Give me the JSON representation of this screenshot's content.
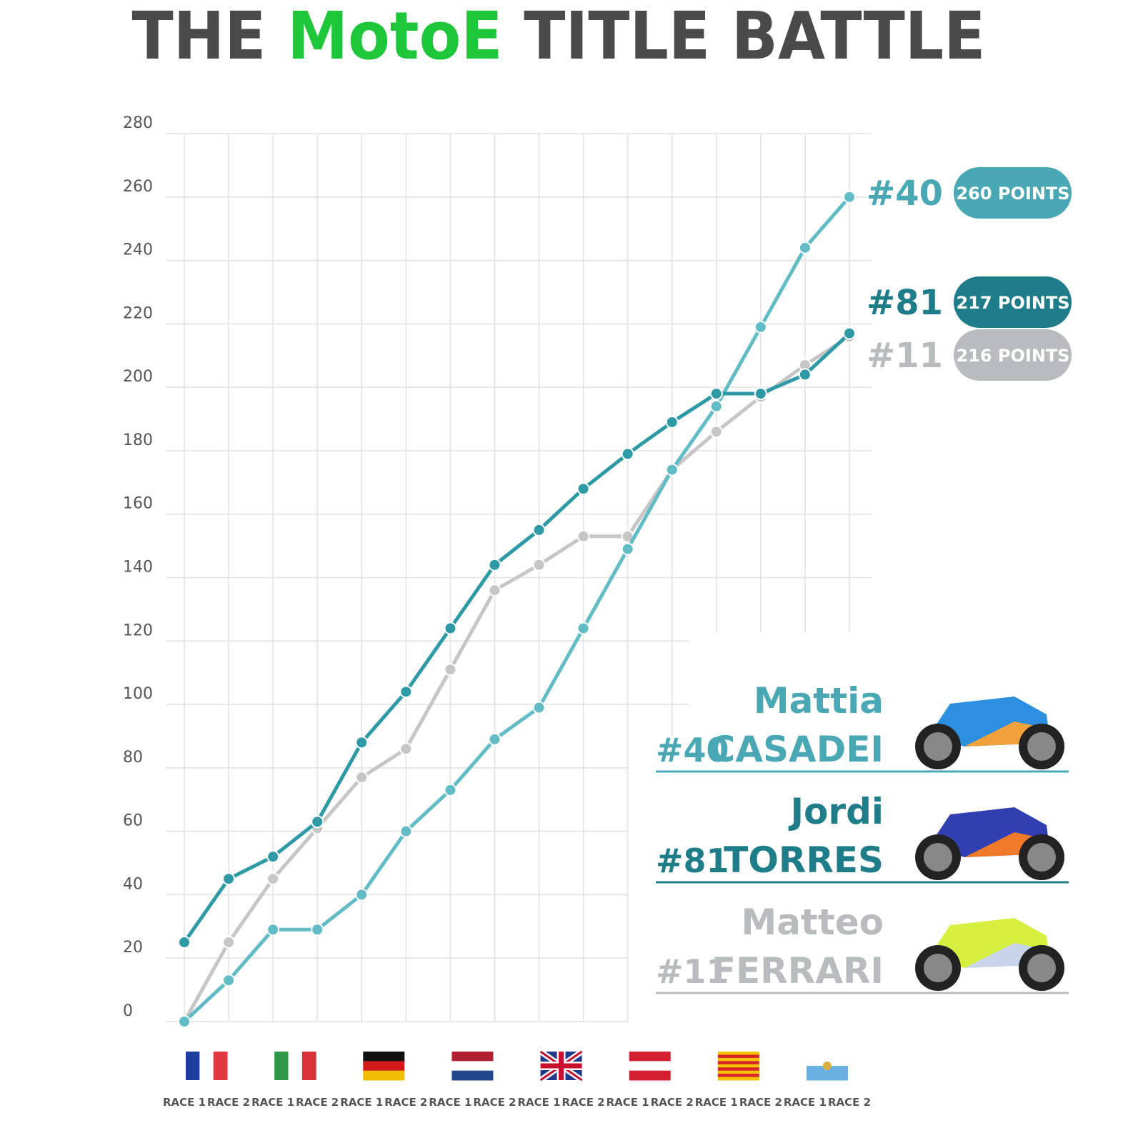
{
  "chart_data": {
    "type": "line",
    "title": [
      "THE",
      "MotoE",
      "TITLE BATTLE"
    ],
    "title_colors": [
      "#4a4a4a",
      "#1ec63a",
      "#4a4a4a"
    ],
    "categories": [
      "RACE 1",
      "RACE 2",
      "RACE 1",
      "RACE 2",
      "RACE 1",
      "RACE 2",
      "RACE 1",
      "RACE 2",
      "RACE 1",
      "RACE 2",
      "RACE 1",
      "RACE 2",
      "RACE 1",
      "RACE 2",
      "RACE 1",
      "RACE 2"
    ],
    "ylim": [
      0,
      280
    ],
    "yticks": [
      0,
      20,
      40,
      60,
      80,
      100,
      120,
      140,
      160,
      180,
      200,
      220,
      240,
      260,
      280
    ],
    "grid": true,
    "series": [
      {
        "name": "#40",
        "color": "#62bcc6",
        "badge_color": "#4aa8b4",
        "points_label": "260 POINTS",
        "first_name": "Mattia",
        "last_name": "CASADEI",
        "values": [
          0,
          13,
          29,
          29,
          40,
          60,
          73,
          89,
          99,
          124,
          149,
          174,
          194,
          219,
          244,
          260
        ]
      },
      {
        "name": "#81",
        "color": "#2d9aa6",
        "badge_color": "#1f7d8a",
        "points_label": "217 POINTS",
        "first_name": "Jordi",
        "last_name": "TORRES",
        "values": [
          25,
          45,
          52,
          63,
          88,
          104,
          124,
          144,
          155,
          168,
          179,
          189,
          198,
          198,
          204,
          217
        ]
      },
      {
        "name": "#11",
        "color": "#c6c6c6",
        "badge_color": "#b8bcbc",
        "points_label": "216 POINTS",
        "first_name": "Matteo",
        "last_name": "FERRARI",
        "values": [
          0,
          25,
          45,
          61,
          77,
          86,
          111,
          136,
          144,
          153,
          153,
          174,
          186,
          197,
          207,
          216
        ]
      }
    ]
  }
}
